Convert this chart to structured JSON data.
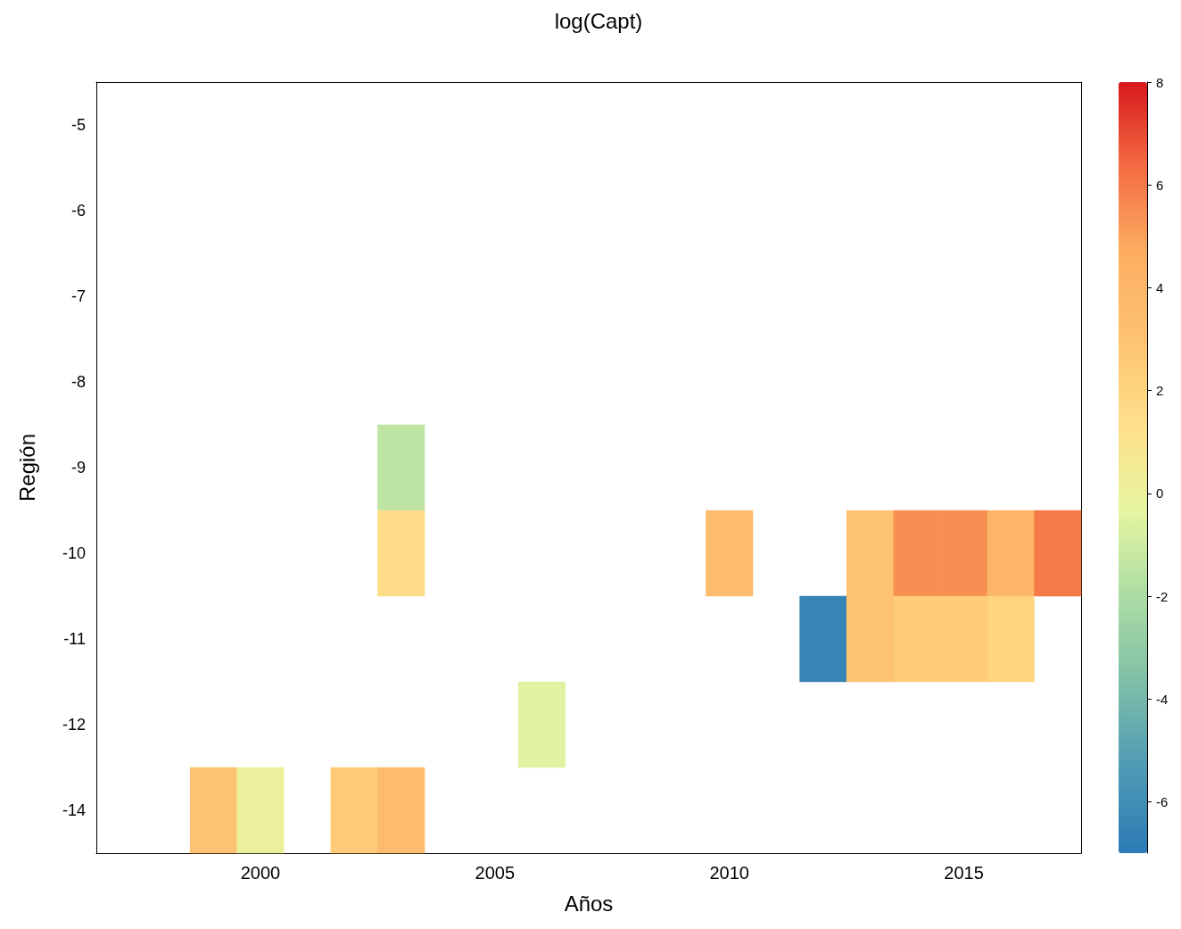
{
  "chart_data": {
    "type": "heatmap",
    "title": "log(Capt)",
    "xlabel": "Años",
    "ylabel": "Región",
    "categories": [
      null,
      null,
      null,
      "2000",
      null,
      null,
      null,
      null,
      "2005",
      null,
      null,
      null,
      null,
      "2010",
      null,
      null,
      null,
      null,
      "2015",
      null,
      null
    ],
    "y_categories": [
      "-5",
      "-6",
      "-7",
      "-8",
      "-9",
      "-10",
      "-11",
      "-12",
      "-14"
    ],
    "cells": [
      [
        null,
        null,
        null,
        null,
        null,
        null,
        null,
        null,
        null,
        null,
        null,
        null,
        null,
        null,
        null,
        null,
        null,
        null,
        null,
        null,
        null
      ],
      [
        null,
        null,
        null,
        null,
        null,
        null,
        null,
        null,
        null,
        null,
        null,
        null,
        null,
        null,
        null,
        null,
        null,
        null,
        null,
        null,
        null
      ],
      [
        null,
        null,
        null,
        null,
        null,
        null,
        null,
        null,
        null,
        null,
        null,
        null,
        null,
        null,
        null,
        null,
        null,
        null,
        null,
        null,
        null
      ],
      [
        null,
        null,
        null,
        null,
        null,
        null,
        null,
        null,
        null,
        null,
        null,
        null,
        null,
        null,
        null,
        null,
        null,
        null,
        null,
        null,
        null
      ],
      [
        null,
        null,
        null,
        null,
        null,
        null,
        -1.5,
        null,
        null,
        null,
        null,
        null,
        null,
        null,
        null,
        null,
        null,
        null,
        null,
        null,
        null
      ],
      [
        null,
        null,
        null,
        null,
        null,
        null,
        1.5,
        null,
        null,
        null,
        null,
        null,
        null,
        3.5,
        null,
        null,
        3,
        5.5,
        5.5,
        4,
        6
      ],
      [
        null,
        null,
        null,
        null,
        null,
        null,
        null,
        null,
        null,
        null,
        null,
        null,
        null,
        null,
        null,
        -6.5,
        3,
        2.5,
        2.5,
        2,
        null
      ],
      [
        null,
        null,
        null,
        null,
        null,
        null,
        null,
        null,
        null,
        -0.5,
        null,
        null,
        null,
        null,
        null,
        null,
        null,
        null,
        null,
        null,
        null
      ],
      [
        null,
        null,
        3,
        0,
        null,
        2.5,
        3.5,
        null,
        null,
        null,
        null,
        null,
        null,
        null,
        null,
        null,
        null,
        null,
        null,
        null,
        null
      ]
    ],
    "clim": [
      -7,
      8
    ],
    "cticks": [
      -6,
      -4,
      -2,
      0,
      2,
      4,
      6,
      8
    ]
  }
}
